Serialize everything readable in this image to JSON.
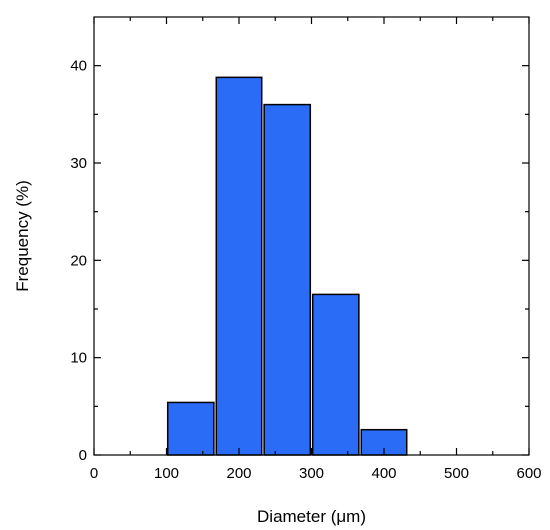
{
  "chart_data": {
    "type": "bar",
    "xlabel": "Diameter (μm)",
    "ylabel": "Frequency (%)",
    "xlim": [
      0,
      600
    ],
    "ylim": [
      0,
      45
    ],
    "xticks": [
      0,
      100,
      200,
      300,
      400,
      500,
      600
    ],
    "yticks": [
      0,
      10,
      20,
      30,
      40
    ],
    "bins": [
      {
        "x0": 100,
        "x1": 167,
        "value": 5.4
      },
      {
        "x0": 167,
        "x1": 233,
        "value": 38.8
      },
      {
        "x0": 233,
        "x1": 300,
        "value": 36.0
      },
      {
        "x0": 300,
        "x1": 367,
        "value": 16.5
      },
      {
        "x0": 367,
        "x1": 433,
        "value": 2.6
      }
    ],
    "bar_color": "#2a6cf5",
    "edge_color": "#000000",
    "grid": false,
    "legend": "none"
  }
}
